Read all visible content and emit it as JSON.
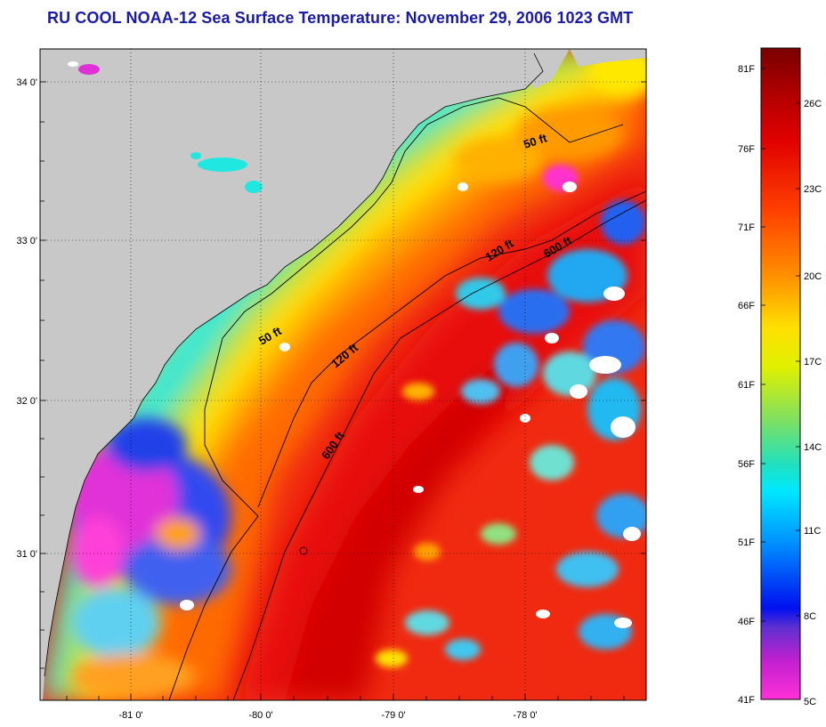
{
  "title": "RU COOL  NOAA-12  Sea Surface Temperature:  November 29, 2006 1023 GMT",
  "map": {
    "lon_labels": [
      "-81 0'",
      "-80 0'",
      "-79 0'",
      "-78 0'"
    ],
    "lat_labels": [
      "34 0'",
      "33 0'",
      "32 0'",
      "31 0'"
    ],
    "contours": [
      {
        "label": "50 ft",
        "depth_ft": 50
      },
      {
        "label": "50 ft",
        "depth_ft": 50
      },
      {
        "label": "120 ft",
        "depth_ft": 120
      },
      {
        "label": "120 ft",
        "depth_ft": 120
      },
      {
        "label": "600 ft",
        "depth_ft": 600
      },
      {
        "label": "600 ft",
        "depth_ft": 600
      }
    ],
    "land_color": "#c8c8c8",
    "cloud_color": "#ffffff"
  },
  "colorbar": {
    "fahrenheit_labels": [
      "81F",
      "76F",
      "71F",
      "66F",
      "61F",
      "56F",
      "51F",
      "46F",
      "41F"
    ],
    "celsius_labels": [
      "26C",
      "23C",
      "20C",
      "17C",
      "14C",
      "11C",
      "8C",
      "5C"
    ],
    "colors_top_to_bottom": [
      "#7a0000",
      "#d40000",
      "#ff2000",
      "#ff6a00",
      "#ffa000",
      "#ffee00",
      "#c8f000",
      "#60e070",
      "#10e0d0",
      "#00c8ff",
      "#0080ff",
      "#0010f0",
      "#a020c0",
      "#ff30d0"
    ]
  }
}
